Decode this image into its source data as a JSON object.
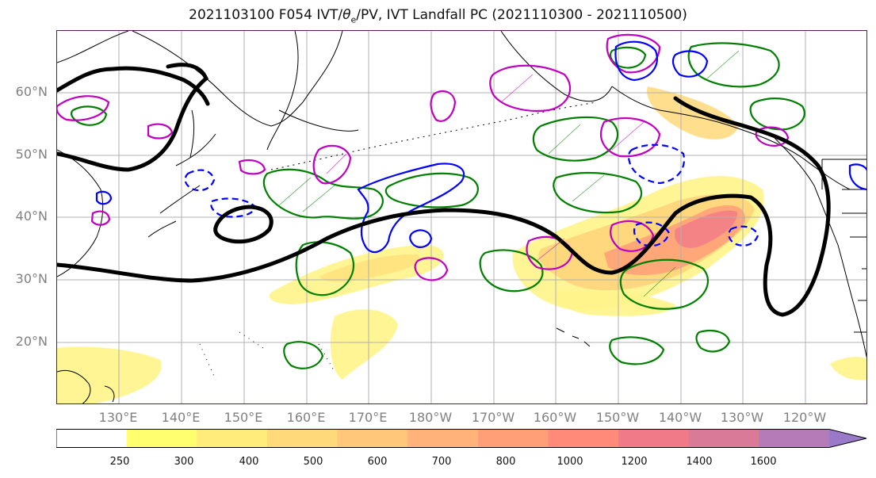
{
  "title": {
    "prefix": "2021103100 F054 IVT/",
    "theta_symbol": "θ",
    "theta_subscript": "e",
    "suffix": "/PV, IVT Landfall PC (2021110300 - 2021110500)"
  },
  "latitude_labels": [
    "60°N",
    "50°N",
    "40°N",
    "30°N",
    "20°N"
  ],
  "longitude_labels": [
    "130°E",
    "140°E",
    "150°E",
    "160°E",
    "170°E",
    "180°W",
    "170°W",
    "160°W",
    "150°W",
    "140°W",
    "130°W",
    "120°W"
  ],
  "colorbar": {
    "ticks": [
      "250",
      "300",
      "400",
      "500",
      "600",
      "700",
      "800",
      "1000",
      "1200",
      "1400",
      "1600"
    ],
    "colors": [
      "#ffffff",
      "#ffff70",
      "#ffec7a",
      "#ffd97a",
      "#ffc77a",
      "#ffb37a",
      "#ff9f78",
      "#ff8a7a",
      "#f07a88",
      "#d87a98",
      "#b57ab8",
      "#9a7ac8"
    ]
  },
  "legend_colors": {
    "ivt_landfall_pc": "#000000",
    "theta_e_contour": "#008000",
    "pv_positive": "#c000c0",
    "pv_negative": "#0000ff"
  }
}
